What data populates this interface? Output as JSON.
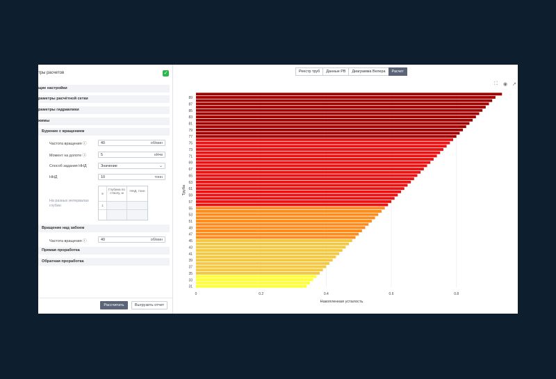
{
  "left_panel": {
    "title": "тры расчетов",
    "sections": {
      "general": "щие настройки",
      "grid": "раметры расчётной сетки",
      "hydraulics": "раметры гидравлики",
      "modes": "жимы"
    },
    "drilling_rotation": {
      "title": "Бурение с вращением",
      "rot_freq_label": "Частота вращения ⓘ",
      "rot_freq_value": "40",
      "rot_freq_unit": "об/мин",
      "torque_label": "Момент на долоте ⓘ",
      "torque_value": "5",
      "torque_unit": "кН•м",
      "load_method_label": "Способ задания ННД",
      "load_method_value": "Значение",
      "nnd_label": "ННД",
      "nnd_value": "10",
      "nnd_unit": "тонн",
      "intervals_label": "На разных интервалах глубин",
      "table_headers": [
        "Глубина по стволу, м",
        "ННД, тонн"
      ],
      "table_rows": [
        "1"
      ]
    },
    "rotation_above_bottom": {
      "title": "Вращение над забоем",
      "rot_freq_label": "Частота вращения ⓘ",
      "rot_freq_value": "40",
      "rot_freq_unit": "об/мин"
    },
    "straight_reaming": "Прямая проработка",
    "back_reaming": "Обратная проработка",
    "calc_button": "Рассчитать",
    "export_button": "Выгрузить отчет"
  },
  "tabs": [
    "Реестр труб",
    "Данные РВ",
    "Диаграмма Велера",
    "Расчет"
  ],
  "active_tab": "Расчет",
  "toolbar_icons": [
    "fullscreen-icon",
    "camera-icon",
    "open-external-icon"
  ],
  "chart_data": {
    "type": "bar",
    "orientation": "horizontal",
    "xlabel": "Накопленная усталость",
    "ylabel": "Труба",
    "xlim": [
      0,
      0.98
    ],
    "x_ticks": [
      "0",
      "0.2",
      "0.4",
      "0.6",
      "0.8"
    ],
    "y_tick_labels": [
      "31",
      "33",
      "35",
      "37",
      "39",
      "41",
      "43",
      "45",
      "47",
      "49",
      "51",
      "53",
      "55",
      "57",
      "59",
      "61",
      "63",
      "65",
      "67",
      "69",
      "71",
      "73",
      "75",
      "77",
      "79",
      "81",
      "83",
      "85",
      "87",
      "89"
    ],
    "categories": [
      31,
      32,
      33,
      34,
      35,
      36,
      37,
      38,
      39,
      40,
      41,
      42,
      43,
      44,
      45,
      46,
      47,
      48,
      49,
      50,
      51,
      52,
      53,
      54,
      55,
      56,
      57,
      58,
      59,
      60,
      61,
      62,
      63,
      64,
      65,
      66,
      67,
      68,
      69,
      70,
      71,
      72,
      73,
      74,
      75,
      76,
      77,
      78,
      79,
      80,
      81,
      82,
      83,
      84,
      85,
      86,
      87,
      88,
      89,
      90
    ],
    "values": [
      0.34,
      0.35,
      0.36,
      0.37,
      0.38,
      0.39,
      0.4,
      0.41,
      0.42,
      0.43,
      0.44,
      0.45,
      0.46,
      0.47,
      0.48,
      0.49,
      0.5,
      0.51,
      0.52,
      0.53,
      0.54,
      0.55,
      0.56,
      0.57,
      0.58,
      0.59,
      0.6,
      0.61,
      0.62,
      0.63,
      0.64,
      0.65,
      0.66,
      0.67,
      0.68,
      0.69,
      0.7,
      0.71,
      0.72,
      0.73,
      0.74,
      0.75,
      0.76,
      0.77,
      0.78,
      0.79,
      0.8,
      0.81,
      0.82,
      0.83,
      0.84,
      0.85,
      0.86,
      0.87,
      0.88,
      0.89,
      0.9,
      0.91,
      0.92,
      0.94
    ],
    "colors": {
      "low": "#ffff33",
      "mid_low": "#f5c842",
      "mid": "#ff8c1a",
      "high": "#ee1111",
      "very_high": "#a30000"
    },
    "grid": true
  }
}
